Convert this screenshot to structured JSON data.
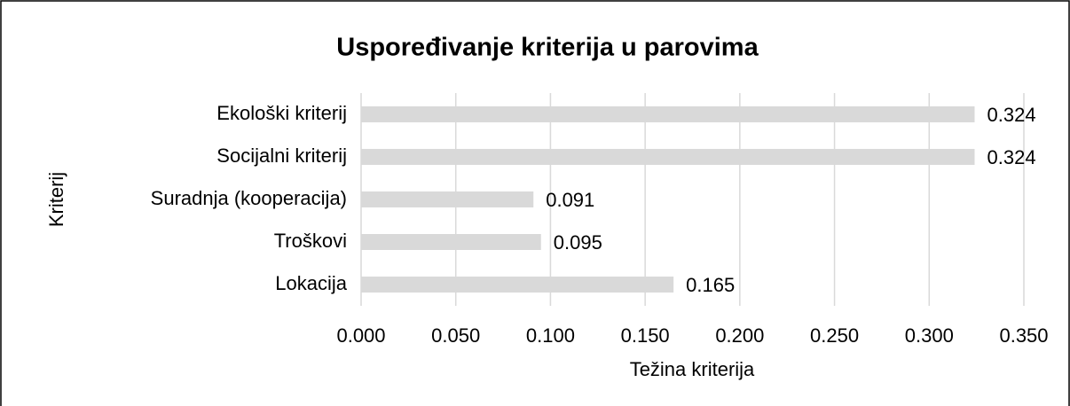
{
  "chart_data": {
    "type": "barh",
    "title": "Uspoređivanje kriterija u parovima",
    "xlabel": "Težina kriterija",
    "ylabel": "Kriterij",
    "categories": [
      "Ekološki kriterij",
      "Socijalni kriterij",
      "Suradnja (kooperacija)",
      "Troškovi",
      "Lokacija"
    ],
    "values": [
      0.324,
      0.324,
      0.091,
      0.095,
      0.165
    ],
    "color": "#d9d9d9",
    "xlim": [
      0,
      0.35
    ],
    "xticks": [
      {
        "value": 0,
        "label": "0.000"
      },
      {
        "value": 0.05,
        "label": "0.050"
      },
      {
        "value": 0.1,
        "label": "0.100"
      },
      {
        "value": 0.15,
        "label": "0.150"
      },
      {
        "value": 0.2,
        "label": "0.200"
      },
      {
        "value": 0.25,
        "label": "0.250"
      },
      {
        "value": 0.3,
        "label": "0.300"
      },
      {
        "value": 0.35,
        "label": "0.350"
      }
    ],
    "grid": true
  }
}
